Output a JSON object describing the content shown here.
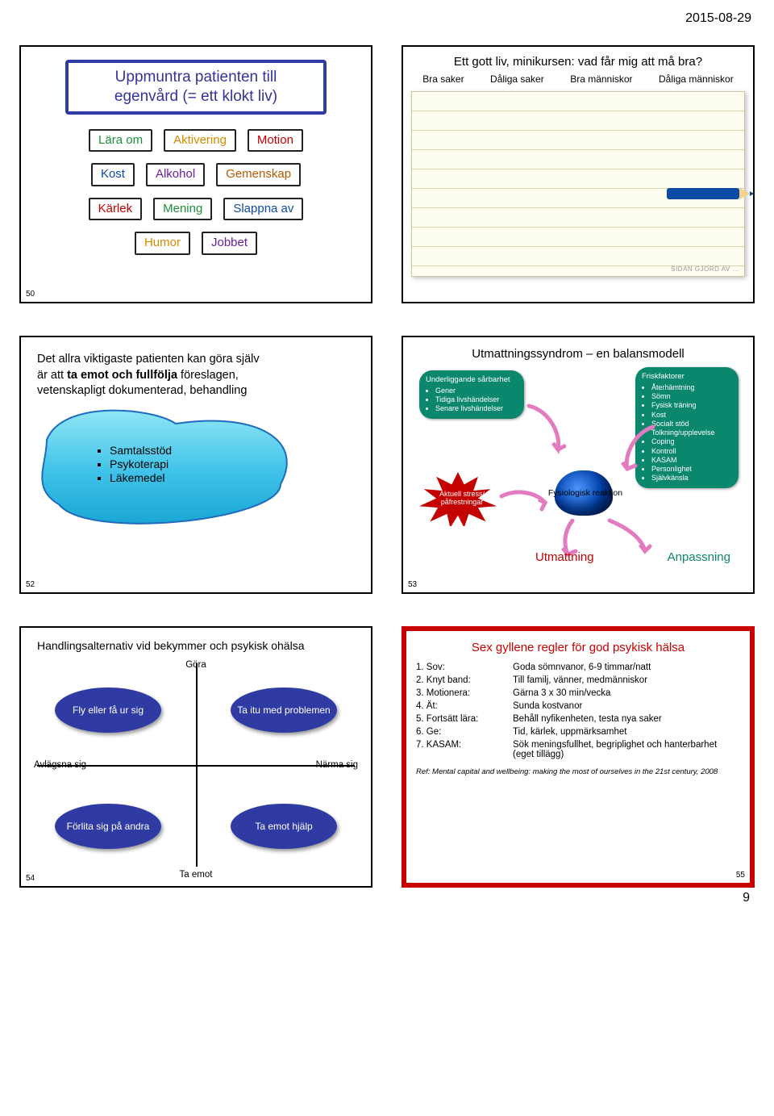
{
  "meta": {
    "date": "2015-08-29",
    "page_number": "9"
  },
  "slide1": {
    "num": "50",
    "title": "Uppmuntra patienten till egenvård (= ett klokt liv)",
    "title_border": "#2f3ba3",
    "rows": [
      [
        {
          "t": "Lära om",
          "c": "#1a8f3a"
        },
        {
          "t": "Aktivering",
          "c": "#d48a00"
        },
        {
          "t": "Motion",
          "c": "#c40000"
        }
      ],
      [
        {
          "t": "Kost",
          "c": "#0d4aa5"
        },
        {
          "t": "Alkohol",
          "c": "#6a1ea0"
        },
        {
          "t": "Gemenskap",
          "c": "#b35a00"
        }
      ],
      [
        {
          "t": "Kärlek",
          "c": "#c40000"
        },
        {
          "t": "Mening",
          "c": "#1a8f3a"
        },
        {
          "t": "Slappna av",
          "c": "#0d4aa5"
        }
      ],
      [
        {
          "t": "Humor",
          "c": "#d48a00"
        },
        {
          "t": "Jobbet",
          "c": "#6a1ea0"
        }
      ]
    ]
  },
  "slide2": {
    "title": "Ett gott liv, minikursen: vad får mig att må bra?",
    "cols": [
      "Bra saker",
      "Dåliga saker",
      "Bra människor",
      "Dåliga människor"
    ],
    "crayon_color": "#0b4aa5"
  },
  "slide3": {
    "num": "52",
    "line1": "Det allra viktigaste patienten kan göra själv",
    "line2a": "är att ",
    "line2b": "ta emot och fullfölja",
    "line2c": " föreslagen,",
    "line3": "vetenskapligt dokumenterad, behandling",
    "items": [
      "Samtalsstöd",
      "Psykoterapi",
      "Läkemedel"
    ],
    "blob_fill": "#43c7e8",
    "blob_stroke": "#1e6bbf"
  },
  "slide4": {
    "num": "53",
    "title": "Utmattningssyndrom – en balansmodell",
    "box_bg": "#0b876e",
    "burst_fill": "#c40000",
    "arrow_pink": "#e37bc0",
    "vuln": {
      "head": "Underliggande sårbarhet",
      "items": [
        "Gener",
        "Tidiga livshändelser",
        "Senare livshändelser"
      ]
    },
    "frisk": {
      "head": "Friskfaktorer",
      "items": [
        "Återhämtning",
        "Sömn",
        "Fysisk träning",
        "Kost",
        "Socialt stöd",
        "Tolkning/upplevelse",
        "Coping",
        "Kontroll",
        "KASAM",
        "Personlighet",
        "Självkänsla"
      ]
    },
    "burst_label": "Aktuell stress/ påfrestningar",
    "phys": "Fysiologisk reaktion",
    "out_ut": "Utmattning",
    "out_an": "Anpassning"
  },
  "slide5": {
    "num": "54",
    "title": "Handlingsalternativ vid bekymmer och psykisk ohälsa",
    "axis": {
      "top": "Göra",
      "bottom": "Ta emot",
      "left": "Avlägsna sig",
      "right": "Närma sig"
    },
    "ovals": {
      "tl": "Fly eller få ur sig",
      "tr": "Ta itu med problemen",
      "bl": "Förlita sig på andra",
      "br": "Ta emot hjälp"
    },
    "oval_bg": "#2f3ba3"
  },
  "slide6": {
    "num": "55",
    "border": "#c80000",
    "title": "Sex gyllene regler för god psykisk hälsa",
    "title_color": "#cc0000",
    "rules": [
      {
        "k": "1. Sov:",
        "v": "Goda sömnvanor, 6-9 timmar/natt"
      },
      {
        "k": "2. Knyt band:",
        "v": "Till familj, vänner, medmänniskor"
      },
      {
        "k": "3. Motionera:",
        "v": "Gärna 3 x 30 min/vecka"
      },
      {
        "k": "4. Ät:",
        "v": "Sunda kostvanor"
      },
      {
        "k": "5. Fortsätt lära:",
        "v": "Behåll nyfikenheten, testa nya saker"
      },
      {
        "k": "6. Ge:",
        "v": "Tid, kärlek, uppmärksamhet"
      },
      {
        "k": "7. KASAM:",
        "v": "Sök meningsfullhet, begriplighet och hanterbarhet (eget tillägg)"
      }
    ],
    "ref": "Ref: Mental capital and wellbeing: making the most of ourselves in the 21st century, 2008"
  }
}
